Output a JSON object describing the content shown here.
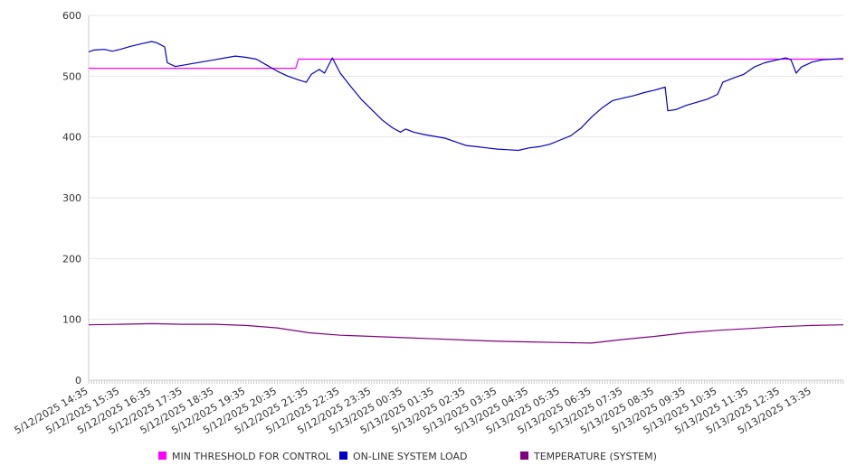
{
  "chart_data": {
    "type": "line",
    "grid": true,
    "legend_position": "bottom",
    "ylim": [
      0,
      600
    ],
    "yticks": [
      0,
      100,
      200,
      300,
      400,
      500,
      600
    ],
    "x_range": [
      "5/12/2025 14:35",
      "5/13/2025 14:35"
    ],
    "xtick_labels": [
      "5/12/2025 14:35",
      "5/12/2025 15:35",
      "5/12/2025 16:35",
      "5/12/2025 17:35",
      "5/12/2025 18:35",
      "5/12/2025 19:35",
      "5/12/2025 20:35",
      "5/12/2025 21:35",
      "5/12/2025 22:35",
      "5/12/2025 23:35",
      "5/13/2025 00:35",
      "5/13/2025 01:35",
      "5/13/2025 02:35",
      "5/13/2025 03:35",
      "5/13/2025 04:35",
      "5/13/2025 05:35",
      "5/13/2025 06:35",
      "5/13/2025 07:35",
      "5/13/2025 08:35",
      "5/13/2025 09:35",
      "5/13/2025 10:35",
      "5/13/2025 11:35",
      "5/13/2025 12:35",
      "5/13/2025 13:35"
    ],
    "series": [
      {
        "name": "MIN THRESHOLD FOR CONTROL",
        "color": "#ff00ff",
        "points": [
          [
            "5/12/2025 14:35",
            513
          ],
          [
            "5/12/2025 21:10",
            513
          ],
          [
            "5/12/2025 21:15",
            528
          ],
          [
            "5/13/2025 14:35",
            528
          ]
        ]
      },
      {
        "name": "ON-LINE SYSTEM LOAD",
        "color": "#0000cc",
        "points": [
          [
            "5/12/2025 14:35",
            540
          ],
          [
            "5/12/2025 14:45",
            543
          ],
          [
            "5/12/2025 15:05",
            544
          ],
          [
            "5/12/2025 15:20",
            541
          ],
          [
            "5/12/2025 15:35",
            544
          ],
          [
            "5/12/2025 15:55",
            549
          ],
          [
            "5/12/2025 16:15",
            553
          ],
          [
            "5/12/2025 16:35",
            557
          ],
          [
            "5/12/2025 16:45",
            555
          ],
          [
            "5/12/2025 17:00",
            548
          ],
          [
            "5/12/2025 17:05",
            522
          ],
          [
            "5/12/2025 17:20",
            516
          ],
          [
            "5/12/2025 17:35",
            518
          ],
          [
            "5/12/2025 17:55",
            521
          ],
          [
            "5/12/2025 18:15",
            524
          ],
          [
            "5/12/2025 18:35",
            527
          ],
          [
            "5/12/2025 18:55",
            530
          ],
          [
            "5/12/2025 19:15",
            533
          ],
          [
            "5/12/2025 19:35",
            531
          ],
          [
            "5/12/2025 19:55",
            528
          ],
          [
            "5/12/2025 20:15",
            518
          ],
          [
            "5/12/2025 20:35",
            508
          ],
          [
            "5/12/2025 20:55",
            500
          ],
          [
            "5/12/2025 21:15",
            494
          ],
          [
            "5/12/2025 21:30",
            490
          ],
          [
            "5/12/2025 21:40",
            503
          ],
          [
            "5/12/2025 21:55",
            511
          ],
          [
            "5/12/2025 22:05",
            505
          ],
          [
            "5/12/2025 22:20",
            530
          ],
          [
            "5/12/2025 22:35",
            505
          ],
          [
            "5/12/2025 22:55",
            483
          ],
          [
            "5/12/2025 23:15",
            462
          ],
          [
            "5/12/2025 23:35",
            445
          ],
          [
            "5/12/2025 23:55",
            428
          ],
          [
            "5/13/2025 00:15",
            415
          ],
          [
            "5/13/2025 00:30",
            408
          ],
          [
            "5/13/2025 00:40",
            413
          ],
          [
            "5/13/2025 00:55",
            408
          ],
          [
            "5/13/2025 01:15",
            404
          ],
          [
            "5/13/2025 01:35",
            401
          ],
          [
            "5/13/2025 01:55",
            398
          ],
          [
            "5/13/2025 02:15",
            392
          ],
          [
            "5/13/2025 02:35",
            386
          ],
          [
            "5/13/2025 02:55",
            384
          ],
          [
            "5/13/2025 03:15",
            382
          ],
          [
            "5/13/2025 03:35",
            380
          ],
          [
            "5/13/2025 03:55",
            379
          ],
          [
            "5/13/2025 04:15",
            378
          ],
          [
            "5/13/2025 04:35",
            382
          ],
          [
            "5/13/2025 04:55",
            384
          ],
          [
            "5/13/2025 05:15",
            388
          ],
          [
            "5/13/2025 05:35",
            395
          ],
          [
            "5/13/2025 05:55",
            402
          ],
          [
            "5/13/2025 06:15",
            415
          ],
          [
            "5/13/2025 06:35",
            433
          ],
          [
            "5/13/2025 06:55",
            448
          ],
          [
            "5/13/2025 07:15",
            460
          ],
          [
            "5/13/2025 07:35",
            464
          ],
          [
            "5/13/2025 07:55",
            468
          ],
          [
            "5/13/2025 08:15",
            473
          ],
          [
            "5/13/2025 08:35",
            477
          ],
          [
            "5/13/2025 08:55",
            482
          ],
          [
            "5/13/2025 09:00",
            443
          ],
          [
            "5/13/2025 09:15",
            445
          ],
          [
            "5/13/2025 09:35",
            452
          ],
          [
            "5/13/2025 09:55",
            457
          ],
          [
            "5/13/2025 10:15",
            462
          ],
          [
            "5/13/2025 10:35",
            470
          ],
          [
            "5/13/2025 10:45",
            490
          ],
          [
            "5/13/2025 11:05",
            497
          ],
          [
            "5/13/2025 11:25",
            503
          ],
          [
            "5/13/2025 11:45",
            515
          ],
          [
            "5/13/2025 12:05",
            522
          ],
          [
            "5/13/2025 12:25",
            526
          ],
          [
            "5/13/2025 12:45",
            530
          ],
          [
            "5/13/2025 12:55",
            527
          ],
          [
            "5/13/2025 13:05",
            505
          ],
          [
            "5/13/2025 13:15",
            515
          ],
          [
            "5/13/2025 13:35",
            523
          ],
          [
            "5/13/2025 13:55",
            527
          ],
          [
            "5/13/2025 14:35",
            529
          ]
        ]
      },
      {
        "name": "TEMPERATURE (SYSTEM)",
        "color": "#800080",
        "points": [
          [
            "5/12/2025 14:35",
            91
          ],
          [
            "5/12/2025 15:35",
            92
          ],
          [
            "5/12/2025 16:35",
            93
          ],
          [
            "5/12/2025 17:35",
            92
          ],
          [
            "5/12/2025 18:35",
            92
          ],
          [
            "5/12/2025 19:35",
            90
          ],
          [
            "5/12/2025 20:35",
            86
          ],
          [
            "5/12/2025 21:35",
            78
          ],
          [
            "5/12/2025 22:35",
            74
          ],
          [
            "5/12/2025 23:35",
            72
          ],
          [
            "5/13/2025 00:35",
            70
          ],
          [
            "5/13/2025 01:35",
            68
          ],
          [
            "5/13/2025 02:35",
            66
          ],
          [
            "5/13/2025 03:35",
            64
          ],
          [
            "5/13/2025 04:35",
            63
          ],
          [
            "5/13/2025 05:35",
            62
          ],
          [
            "5/13/2025 06:35",
            61
          ],
          [
            "5/13/2025 07:35",
            67
          ],
          [
            "5/13/2025 08:35",
            72
          ],
          [
            "5/13/2025 09:35",
            78
          ],
          [
            "5/13/2025 10:35",
            82
          ],
          [
            "5/13/2025 11:35",
            85
          ],
          [
            "5/13/2025 12:35",
            88
          ],
          [
            "5/13/2025 13:35",
            90
          ],
          [
            "5/13/2025 14:35",
            91
          ]
        ]
      }
    ]
  }
}
